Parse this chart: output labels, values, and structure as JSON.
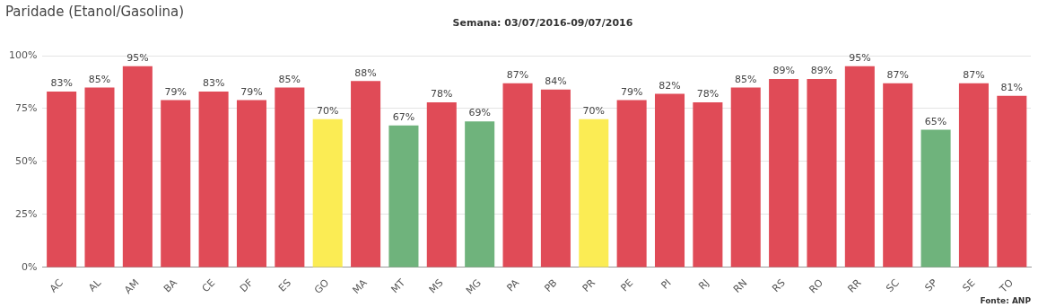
{
  "chart_data": {
    "type": "bar",
    "title": "Paridade (Etanol/Gasolina)",
    "subtitle": "Semana:  03/07/2016-09/07/2016",
    "categories": [
      "AC",
      "AL",
      "AM",
      "BA",
      "CE",
      "DF",
      "ES",
      "GO",
      "MA",
      "MT",
      "MS",
      "MG",
      "PA",
      "PB",
      "PR",
      "PE",
      "PI",
      "RJ",
      "RN",
      "RS",
      "RO",
      "RR",
      "SC",
      "SP",
      "SE",
      "TO"
    ],
    "values": [
      83,
      85,
      95,
      79,
      83,
      79,
      85,
      70,
      88,
      67,
      78,
      69,
      87,
      84,
      70,
      79,
      82,
      78,
      85,
      89,
      89,
      95,
      87,
      65,
      87,
      81
    ],
    "colors": [
      "#e04b57",
      "#e04b57",
      "#e04b57",
      "#e04b57",
      "#e04b57",
      "#e04b57",
      "#e04b57",
      "#fbec54",
      "#e04b57",
      "#6fb37c",
      "#e04b57",
      "#6fb37c",
      "#e04b57",
      "#e04b57",
      "#fbec54",
      "#e04b57",
      "#e04b57",
      "#e04b57",
      "#e04b57",
      "#e04b57",
      "#e04b57",
      "#e04b57",
      "#e04b57",
      "#6fb37c",
      "#e04b57",
      "#e04b57"
    ],
    "value_labels": [
      "83%",
      "85%",
      "95%",
      "79%",
      "83%",
      "79%",
      "85%",
      "70%",
      "88%",
      "67%",
      "78%",
      "69%",
      "87%",
      "84%",
      "70%",
      "79%",
      "82%",
      "78%",
      "85%",
      "89%",
      "89%",
      "95%",
      "87%",
      "65%",
      "87%",
      "81%"
    ],
    "ylim": [
      0,
      100
    ],
    "yticks": [
      {
        "value": 0,
        "label": "0%"
      },
      {
        "value": 25,
        "label": "25%"
      },
      {
        "value": 50,
        "label": "50%"
      },
      {
        "value": 75,
        "label": "75%"
      },
      {
        "value": 100,
        "label": "100%"
      }
    ],
    "grid": "y",
    "legend": false,
    "annotations": [
      "Fonte: ANP"
    ]
  }
}
